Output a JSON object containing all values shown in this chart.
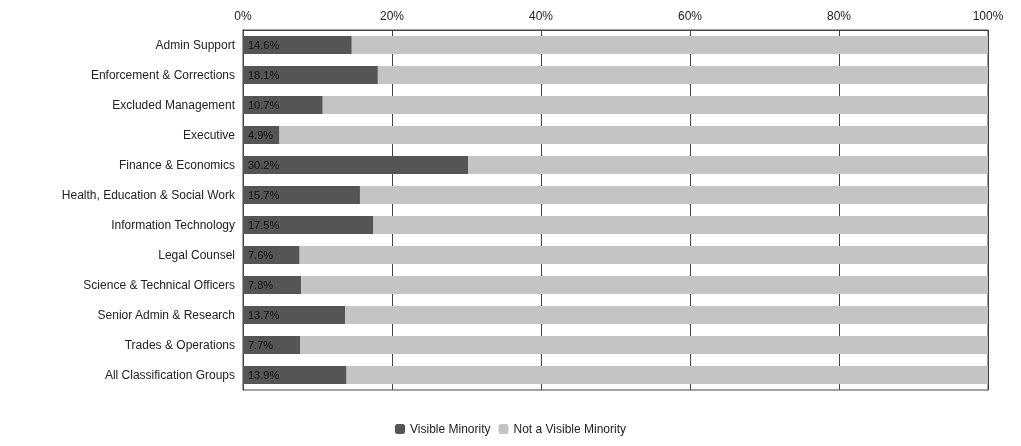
{
  "chart_data": {
    "type": "bar",
    "orientation": "horizontal",
    "stacked": true,
    "categories": [
      "Admin Support",
      "Enforcement & Corrections",
      "Excluded Management",
      "Executive",
      "Finance & Economics",
      "Health, Education & Social Work",
      "Information Technology",
      "Legal Counsel",
      "Science & Technical Officers",
      "Senior Admin & Research",
      "Trades & Operations",
      "All Classification Groups"
    ],
    "series": [
      {
        "name": "Visible Minority",
        "color": "#555555",
        "values": [
          14.6,
          18.1,
          10.7,
          4.9,
          30.2,
          15.7,
          17.5,
          7.6,
          7.8,
          13.7,
          7.7,
          13.9
        ],
        "value_labels": [
          "14.6%",
          "18.1%",
          "10.7%",
          "4.9%",
          "30.2%",
          "15.7%",
          "17.5%",
          "7.6%",
          "7.8%",
          "13.7%",
          "7.7%",
          "13.9%"
        ]
      },
      {
        "name": "Not a Visible Minority",
        "color": "#c4c4c4",
        "values": [
          85.4,
          81.9,
          89.3,
          95.1,
          69.8,
          84.3,
          82.5,
          92.4,
          92.2,
          86.3,
          92.3,
          86.1
        ]
      }
    ],
    "xlim": [
      0,
      100
    ],
    "xticks": [
      {
        "value": 0,
        "label": "0%"
      },
      {
        "value": 20,
        "label": "20%"
      },
      {
        "value": 40,
        "label": "40%"
      },
      {
        "value": 60,
        "label": "60%"
      },
      {
        "value": 80,
        "label": "80%"
      },
      {
        "value": 100,
        "label": "100%"
      }
    ],
    "grid": "x",
    "legend": "bottom"
  }
}
